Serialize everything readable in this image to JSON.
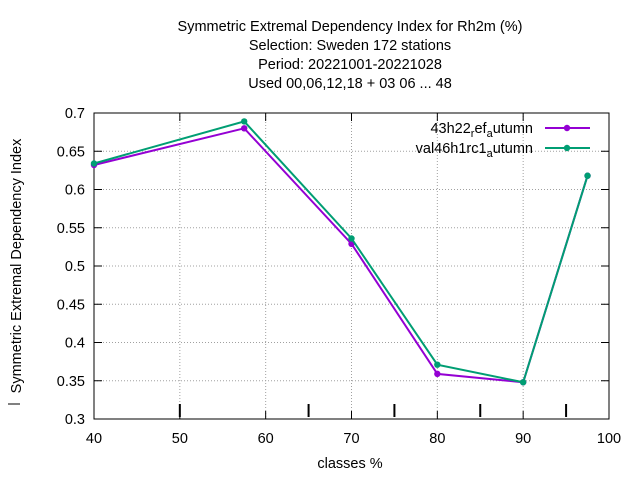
{
  "chart_data": {
    "type": "line",
    "title_lines": [
      "Symmetric Extremal Dependency Index  for Rh2m (%)",
      "Selection: Sweden     172 stations",
      "Period: 20221001-20221028",
      "Used  00,06,12,18  + 03 06 ... 48"
    ],
    "xlabel": "classes %",
    "ylabel": "Symmetric Extremal Dependency Index",
    "xlim": [
      40,
      100
    ],
    "ylim": [
      0.3,
      0.7
    ],
    "xticks": [
      "40",
      "50",
      "60",
      "70",
      "80",
      "90",
      "100"
    ],
    "yticks": [
      "0.3",
      "0.35",
      "0.4",
      "0.45",
      "0.5",
      "0.55",
      "0.6",
      "0.65",
      "0.7"
    ],
    "grid": true,
    "legend_position": "top-right",
    "series": [
      {
        "name": "43h22_ref_autumn",
        "legend_main": "43h22",
        "legend_sub1": "r",
        "legend_mid": "ef",
        "legend_sub2": "a",
        "legend_end": "utumn",
        "color": "#9400d3",
        "x": [
          40,
          57.5,
          70,
          80,
          90,
          97.5
        ],
        "y": [
          0.632,
          0.68,
          0.529,
          0.359,
          0.348,
          0.618
        ]
      },
      {
        "name": "val46h1rc1_autumn",
        "legend_main": "val46h1rc1",
        "legend_sub1": "",
        "legend_mid": "",
        "legend_sub2": "a",
        "legend_end": "utumn",
        "color": "#009e73",
        "x": [
          40,
          57.5,
          70,
          80,
          90,
          97.5
        ],
        "y": [
          0.634,
          0.689,
          0.536,
          0.371,
          0.348,
          0.618
        ]
      }
    ]
  }
}
